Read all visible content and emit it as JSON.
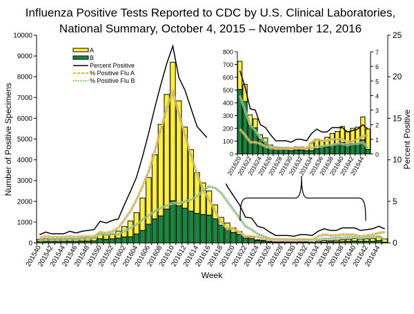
{
  "chart_data": {
    "type": "bar",
    "title_line1": "Influenza Positive Tests Reported to CDC by U.S. Clinical Laboratories,",
    "title_line2": "National Summary, October 4, 2015 – November 12, 2016",
    "xlabel": "Week",
    "ylabel": "Number of Positive Specimens",
    "y2label": "Percent Positive",
    "ylim": [
      0,
      10000
    ],
    "y2lim": [
      0,
      25
    ],
    "stacked": true,
    "grid": false,
    "legend_placement": "top-left",
    "colors": {
      "A": "#FFF133",
      "B": "#168A3C",
      "percent": "#000000",
      "pctA": "#F5B800",
      "pctB": "#4CD42A"
    },
    "weeks": [
      "201540",
      "201541",
      "201542",
      "201543",
      "201544",
      "201545",
      "201546",
      "201547",
      "201548",
      "201549",
      "201550",
      "201551",
      "201552",
      "201601",
      "201602",
      "201603",
      "201604",
      "201605",
      "201606",
      "201607",
      "201608",
      "201609",
      "201610",
      "201611",
      "201612",
      "201613",
      "201614",
      "201615",
      "201616",
      "201617",
      "201618",
      "201619",
      "201620",
      "201621",
      "201622",
      "201623",
      "201624",
      "201625",
      "201626",
      "201627",
      "201628",
      "201629",
      "201630",
      "201631",
      "201632",
      "201633",
      "201634",
      "201635",
      "201636",
      "201637",
      "201638",
      "201639",
      "201640",
      "201641",
      "201642",
      "201643",
      "201644",
      "201645"
    ],
    "x_tick_labels": [
      "201540",
      "201542",
      "201544",
      "201546",
      "201548",
      "201550",
      "201552",
      "201602",
      "201604",
      "201606",
      "201608",
      "201610",
      "201612",
      "201614",
      "201616",
      "201618",
      "201620",
      "201622",
      "201624",
      "201626",
      "201628",
      "201630",
      "201632",
      "201634",
      "201636",
      "201638",
      "201640",
      "201642",
      "201644"
    ],
    "y_ticks": [
      "0",
      "1000",
      "2000",
      "3000",
      "4000",
      "5000",
      "6000",
      "7000",
      "8000",
      "9000",
      "10000"
    ],
    "y2_ticks": [
      "0",
      "5",
      "10",
      "15",
      "20",
      "25"
    ],
    "series": [
      {
        "name": "A",
        "type": "bar",
        "values": [
          100,
          140,
          130,
          130,
          130,
          130,
          130,
          155,
          170,
          140,
          255,
          200,
          220,
          340,
          500,
          760,
          1030,
          1560,
          2250,
          3090,
          4410,
          5520,
          6670,
          5050,
          3910,
          2960,
          1970,
          1520,
          1160,
          670,
          380,
          260,
          220,
          135,
          80,
          70,
          35,
          35,
          25,
          20,
          20,
          20,
          20,
          25,
          25,
          15,
          60,
          75,
          50,
          75,
          95,
          100,
          125,
          100,
          120,
          130,
          180,
          160
        ]
      },
      {
        "name": "B",
        "type": "bar",
        "values": [
          70,
          70,
          70,
          70,
          70,
          80,
          70,
          90,
          90,
          100,
          200,
          180,
          200,
          230,
          290,
          300,
          430,
          600,
          900,
          1160,
          1300,
          1630,
          2030,
          1790,
          1670,
          1530,
          1420,
          1370,
          1340,
          1160,
          850,
          700,
          505,
          410,
          225,
          205,
          115,
          90,
          45,
          30,
          30,
          30,
          25,
          30,
          30,
          25,
          25,
          40,
          55,
          55,
          65,
          75,
          90,
          75,
          80,
          80,
          110,
          35
        ]
      },
      {
        "name": "Percent Positive",
        "type": "line",
        "axis": "right",
        "values": [
          1.0,
          1.3,
          1.1,
          1.1,
          1.1,
          1.4,
          1.2,
          1.4,
          1.5,
          1.6,
          2.6,
          2.4,
          2.7,
          2.9,
          4.6,
          6.2,
          7.9,
          10.4,
          13.2,
          16.2,
          19.0,
          21.6,
          23.7,
          19.9,
          18.4,
          16.2,
          14.0,
          13.2,
          12.4,
          10.4,
          8.3,
          6.8,
          5.7,
          4.6,
          3.1,
          3.0,
          2.0,
          1.8,
          1.3,
          0.9,
          0.9,
          0.9,
          0.8,
          1.0,
          1.0,
          0.9,
          1.4,
          1.7,
          1.5,
          1.5,
          1.8,
          1.8,
          1.8,
          1.5,
          1.6,
          1.7,
          2.0,
          1.7
        ]
      },
      {
        "name": "% Positive Flu A",
        "type": "line",
        "axis": "right",
        "values": [
          0.6,
          0.8,
          0.7,
          0.7,
          0.7,
          0.8,
          0.7,
          0.8,
          0.8,
          0.8,
          1.3,
          1.2,
          1.4,
          1.8,
          2.8,
          3.8,
          5.2,
          6.8,
          8.6,
          11.0,
          13.6,
          16.2,
          18.2,
          15.5,
          13.0,
          10.6,
          8.3,
          6.4,
          5.2,
          3.8,
          2.5,
          1.7,
          1.7,
          1.3,
          0.8,
          0.8,
          0.7,
          0.5,
          0.4,
          0.35,
          0.35,
          0.35,
          0.35,
          0.4,
          0.4,
          0.35,
          0.8,
          1.0,
          0.9,
          0.9,
          1.0,
          1.0,
          1.0,
          0.8,
          0.9,
          1.0,
          1.2,
          1.3
        ]
      },
      {
        "name": "% Positive Flu B",
        "type": "line",
        "axis": "right",
        "values": [
          0.3,
          0.4,
          0.4,
          0.4,
          0.4,
          0.5,
          0.4,
          0.5,
          0.5,
          0.6,
          1.1,
          1.0,
          1.1,
          1.0,
          1.4,
          1.8,
          2.2,
          2.8,
          3.3,
          3.8,
          4.2,
          4.5,
          4.8,
          4.8,
          5.0,
          5.2,
          5.6,
          6.3,
          6.8,
          6.6,
          6.0,
          5.0,
          4.0,
          3.0,
          2.0,
          1.6,
          1.1,
          0.8,
          0.5,
          0.45,
          0.4,
          0.4,
          0.4,
          0.4,
          0.4,
          0.4,
          0.4,
          0.5,
          0.5,
          0.6,
          0.6,
          0.7,
          0.7,
          0.6,
          0.7,
          0.7,
          0.8,
          0.4
        ]
      }
    ],
    "inset": {
      "week_range": [
        "201620",
        "201645"
      ],
      "ylim": [
        0,
        800
      ],
      "y2lim": [
        0,
        7
      ],
      "y_ticks": [
        "0",
        "100",
        "200",
        "300",
        "400",
        "500",
        "600",
        "700",
        "800"
      ],
      "y2_ticks": [
        "0",
        "1",
        "2",
        "3",
        "4",
        "5",
        "6",
        "7"
      ],
      "x_tick_labels": [
        "201620",
        "201622",
        "201624",
        "201626",
        "201628",
        "201630",
        "201632",
        "201634",
        "201636",
        "201638",
        "201640",
        "201642",
        "201644"
      ]
    }
  }
}
